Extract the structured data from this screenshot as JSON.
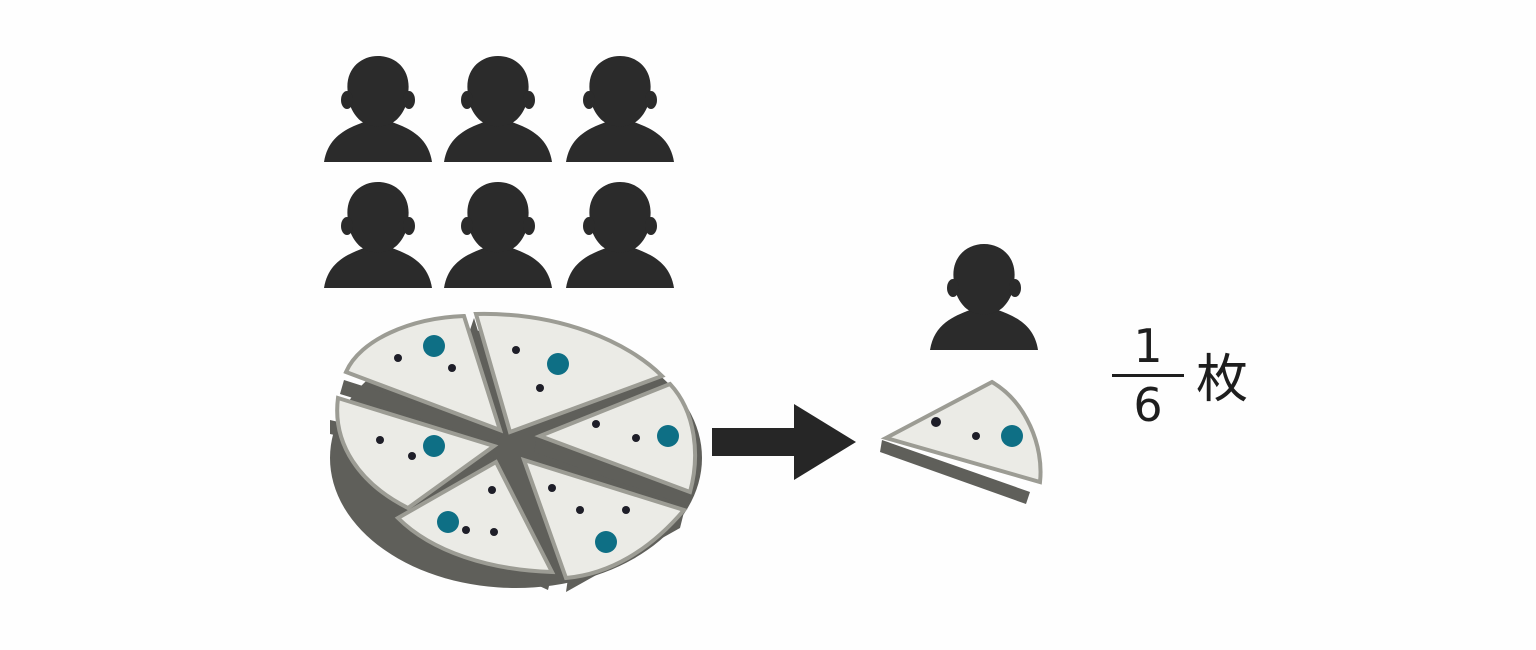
{
  "diagram": {
    "group_size": 6,
    "pizza_slices": 6,
    "result": {
      "numerator": "1",
      "denominator": "6",
      "unit": "枚"
    }
  },
  "colors": {
    "silhouette": "#2b2b2b",
    "pizza_top": "#ebebe6",
    "pizza_crust": "#b4b4ac",
    "pizza_side": "#5f5f5a",
    "topping_blue": "#0e6f85",
    "topping_dark": "#1e1e28",
    "arrow": "#262626"
  }
}
